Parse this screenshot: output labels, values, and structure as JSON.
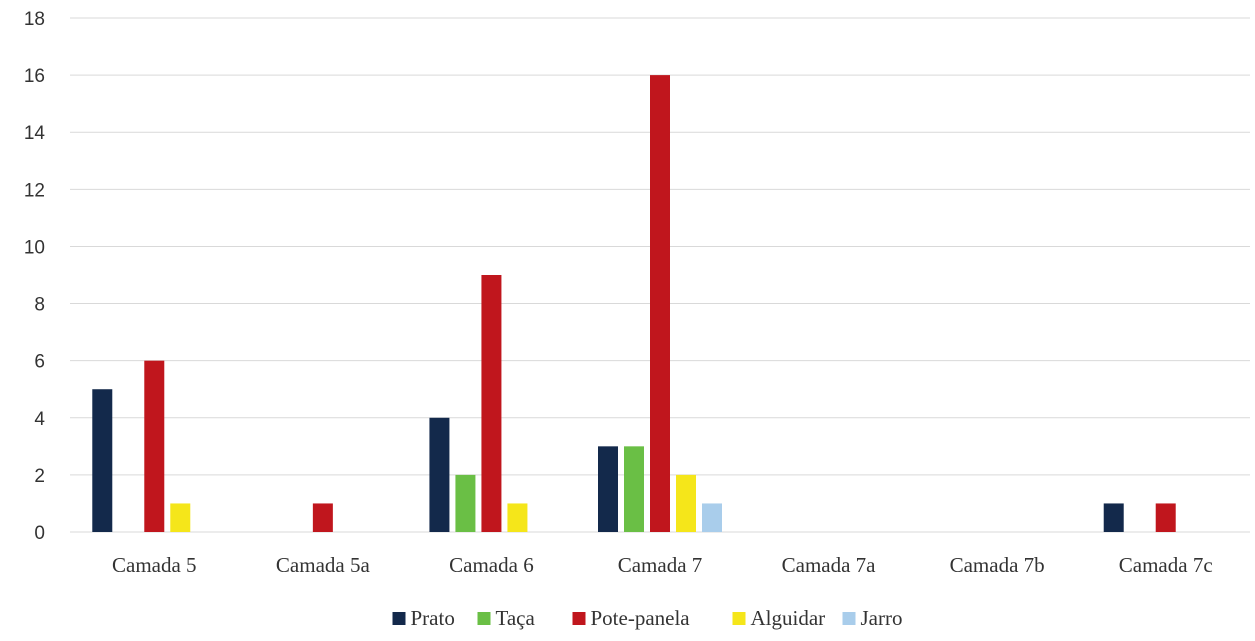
{
  "chart_data": {
    "type": "bar",
    "categories": [
      "Camada 5",
      "Camada 5a",
      "Camada 6",
      "Camada 7",
      "Camada 7a",
      "Camada 7b",
      "Camada 7c"
    ],
    "series": [
      {
        "name": "Prato",
        "color": "#13294b",
        "values": [
          5,
          0,
          4,
          3,
          0,
          0,
          1
        ]
      },
      {
        "name": "Taça",
        "color": "#6abf45",
        "values": [
          0,
          0,
          2,
          3,
          0,
          0,
          0
        ]
      },
      {
        "name": "Pote-panela",
        "color": "#c0161d",
        "values": [
          6,
          1,
          9,
          16,
          0,
          0,
          1
        ]
      },
      {
        "name": "Alguidar",
        "color": "#f5e61a",
        "values": [
          1,
          0,
          1,
          2,
          0,
          0,
          0
        ]
      },
      {
        "name": "Jarro",
        "color": "#a9cdeb",
        "values": [
          0,
          0,
          0,
          1,
          0,
          0,
          0
        ]
      }
    ],
    "ylim": [
      0,
      18
    ],
    "yticks": [
      "0",
      "2",
      "4",
      "6",
      "8",
      "10",
      "12",
      "14",
      "16",
      "18"
    ],
    "grid": true,
    "legend_position": "bottom",
    "title": "",
    "xlabel": "",
    "ylabel": ""
  }
}
